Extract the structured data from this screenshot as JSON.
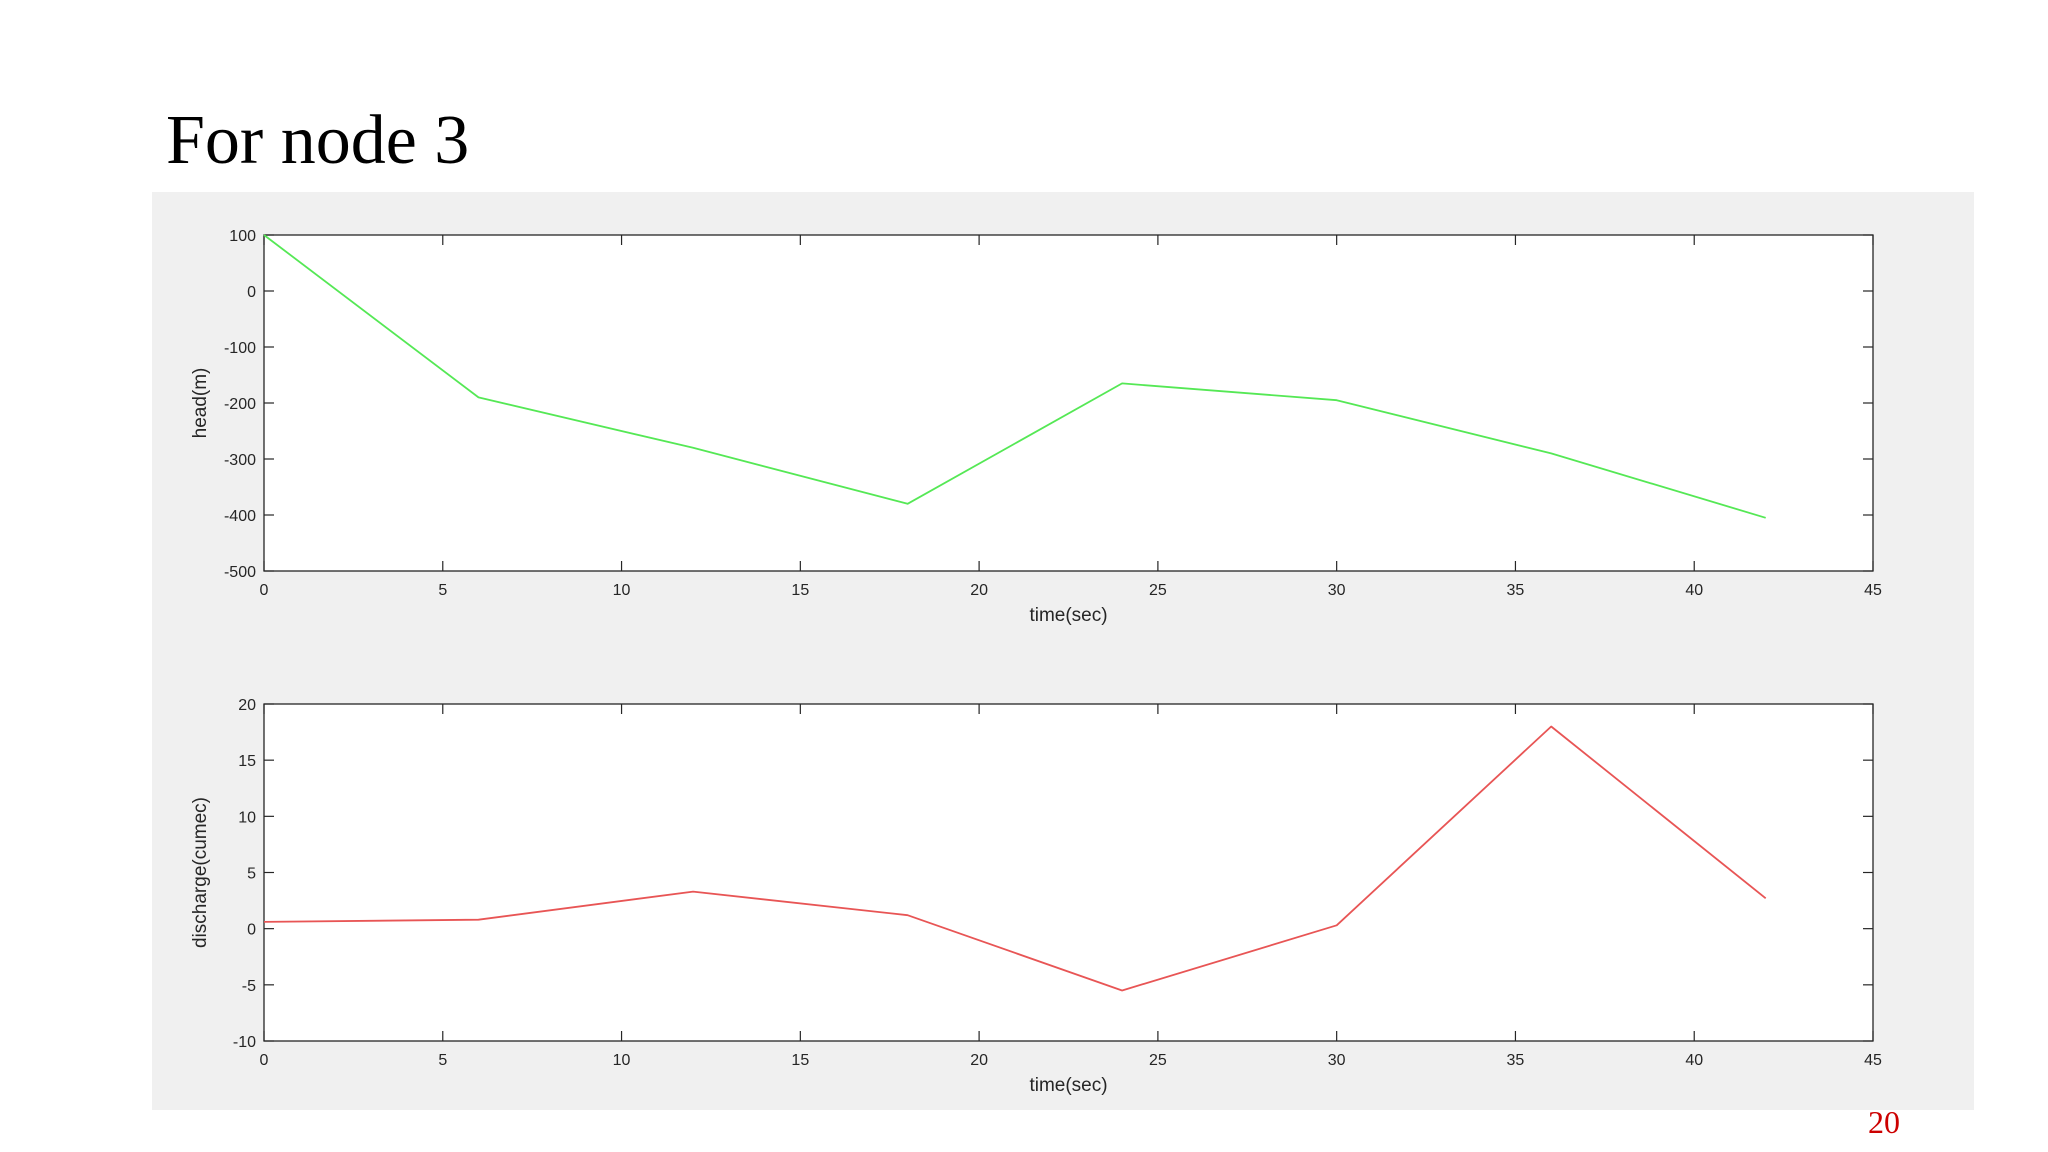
{
  "slide": {
    "title": "For node 3",
    "page_number": "20"
  },
  "chart_data": [
    {
      "type": "line",
      "xlabel": "time(sec)",
      "ylabel": "head(m)",
      "xlim": [
        0,
        45
      ],
      "ylim": [
        -500,
        100
      ],
      "xticks": [
        "0",
        "5",
        "10",
        "15",
        "20",
        "25",
        "30",
        "35",
        "40",
        "45"
      ],
      "yticks": [
        "100",
        "0",
        "-100",
        "-200",
        "-300",
        "-400",
        "-500"
      ],
      "grid": false,
      "series": [
        {
          "color": "#55e855",
          "x": [
            0,
            6,
            12,
            18,
            24,
            30,
            36,
            42
          ],
          "y": [
            100,
            -190,
            -280,
            -380,
            -165,
            -195,
            -290,
            -405
          ]
        }
      ]
    },
    {
      "type": "line",
      "xlabel": "time(sec)",
      "ylabel": "discharge(cumec)",
      "xlim": [
        0,
        45
      ],
      "ylim": [
        -10,
        20
      ],
      "xticks": [
        "0",
        "5",
        "10",
        "15",
        "20",
        "25",
        "30",
        "35",
        "40",
        "45"
      ],
      "yticks": [
        "20",
        "15",
        "10",
        "5",
        "0",
        "-5",
        "-10"
      ],
      "grid": false,
      "series": [
        {
          "color": "#e85555",
          "x": [
            0,
            6,
            12,
            18,
            24,
            30,
            36,
            42
          ],
          "y": [
            0.6,
            0.8,
            3.3,
            1.2,
            -5.5,
            0.3,
            18,
            2.7
          ]
        }
      ]
    }
  ]
}
